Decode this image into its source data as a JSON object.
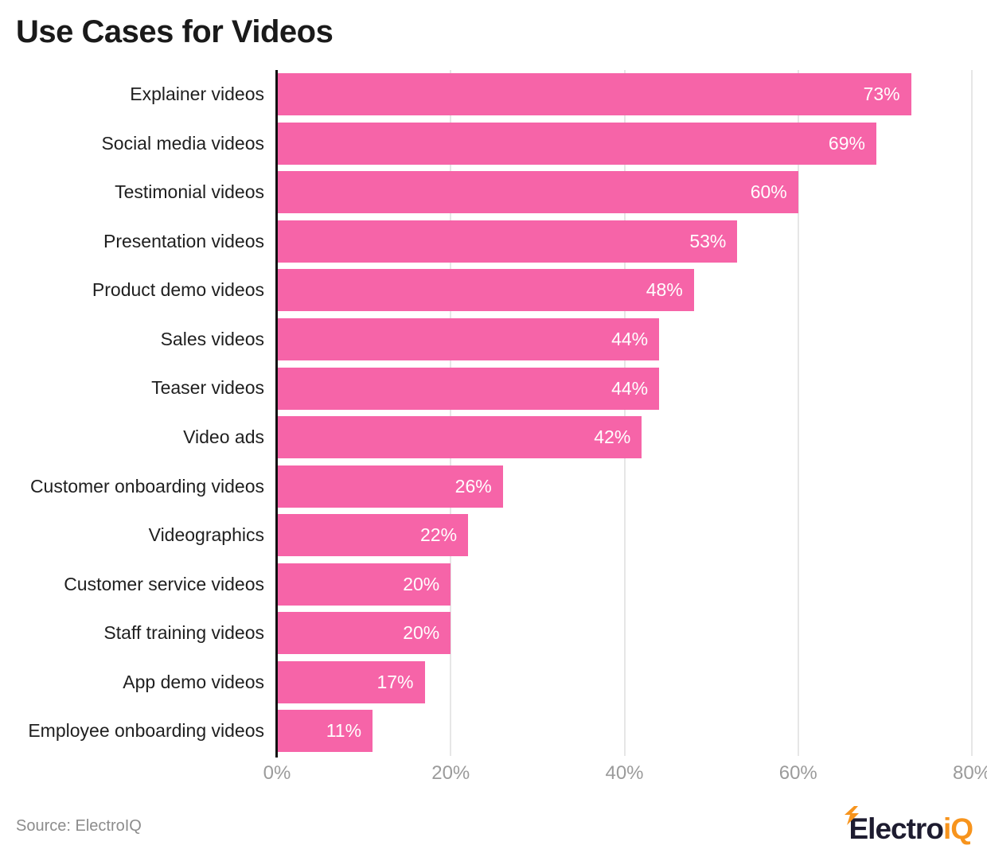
{
  "title": "Use Cases for Videos",
  "source_text": "Source: ElectroIQ",
  "branding": {
    "logo_part1": "Electro",
    "logo_part2": "iQ",
    "logo_dark_color": "#1e1c30",
    "logo_orange_color": "#f7941d"
  },
  "colors": {
    "bar": "#f664a8",
    "value_label": "#ffffff",
    "gridline": "#e6e6e6",
    "axis_line": "#111111",
    "tick_label": "#9b9b9b",
    "category_label": "#1f1f1f",
    "title": "#1a1a1a",
    "source": "#8c8c8c",
    "background": "#ffffff"
  },
  "chart_data": {
    "type": "bar",
    "orientation": "horizontal",
    "title": "Use Cases for Videos",
    "xlabel": "",
    "ylabel": "",
    "xlim": [
      0,
      80
    ],
    "grid": true,
    "legend": false,
    "categories": [
      "Explainer videos",
      "Social media videos",
      "Testimonial videos",
      "Presentation videos",
      "Product demo videos",
      "Sales videos",
      "Teaser videos",
      "Video ads",
      "Customer onboarding videos",
      "Videographics",
      "Customer service videos",
      "Staff training videos",
      "App demo videos",
      "Employee onboarding videos"
    ],
    "values": [
      73,
      69,
      60,
      53,
      48,
      44,
      44,
      42,
      26,
      22,
      20,
      20,
      17,
      11
    ],
    "value_labels": [
      "73%",
      "69%",
      "60%",
      "53%",
      "48%",
      "44%",
      "44%",
      "42%",
      "26%",
      "22%",
      "20%",
      "20%",
      "17%",
      "11%"
    ],
    "x_ticks": [
      "0%",
      "20%",
      "40%",
      "60%",
      "80%"
    ],
    "x_tick_values": [
      0,
      20,
      40,
      60,
      80
    ]
  }
}
